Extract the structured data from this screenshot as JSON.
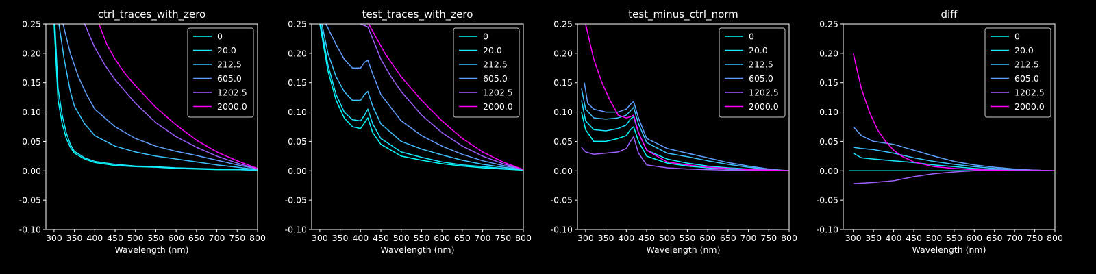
{
  "figure": {
    "background": "#000000",
    "foreground": "#ffffff"
  },
  "chart_data": [
    {
      "type": "line",
      "title": "ctrl_traces_with_zero",
      "xlabel": "Wavelength (nm)",
      "ylabel": "",
      "xlim": [
        280,
        800
      ],
      "ylim": [
        -0.1,
        0.25
      ],
      "xticks": [
        300,
        350,
        400,
        450,
        500,
        550,
        600,
        650,
        700,
        750,
        800
      ],
      "yticks": [
        -0.1,
        -0.05,
        0.0,
        0.05,
        0.1,
        0.15,
        0.2,
        0.25
      ],
      "legend": "top-right",
      "series": [
        {
          "name": "0",
          "color": "#00ffff",
          "x": [
            300,
            310,
            320,
            330,
            340,
            350,
            375,
            400,
            450,
            500,
            550,
            600,
            650,
            700,
            750,
            800
          ],
          "y": [
            0.25,
            0.12,
            0.08,
            0.055,
            0.04,
            0.03,
            0.02,
            0.014,
            0.009,
            0.007,
            0.006,
            0.004,
            0.003,
            0.002,
            0.002,
            0.001
          ]
        },
        {
          "name": "20.0",
          "color": "#19e6ff",
          "x": [
            302,
            310,
            320,
            330,
            340,
            350,
            375,
            400,
            450,
            500,
            550,
            600,
            650,
            700,
            750,
            800
          ],
          "y": [
            0.25,
            0.14,
            0.095,
            0.065,
            0.045,
            0.033,
            0.022,
            0.016,
            0.011,
            0.008,
            0.007,
            0.005,
            0.004,
            0.003,
            0.002,
            0.001
          ]
        },
        {
          "name": "212.5",
          "color": "#3cc3ff",
          "x": [
            312,
            325,
            340,
            350,
            375,
            400,
            450,
            500,
            550,
            600,
            650,
            700,
            750,
            800
          ],
          "y": [
            0.25,
            0.19,
            0.135,
            0.11,
            0.08,
            0.06,
            0.042,
            0.032,
            0.025,
            0.02,
            0.015,
            0.01,
            0.006,
            0.002
          ]
        },
        {
          "name": "605.0",
          "color": "#5fa0ff",
          "x": [
            322,
            340,
            360,
            380,
            400,
            450,
            500,
            550,
            600,
            650,
            700,
            750,
            800
          ],
          "y": [
            0.25,
            0.2,
            0.16,
            0.13,
            0.105,
            0.075,
            0.055,
            0.042,
            0.033,
            0.026,
            0.018,
            0.01,
            0.003
          ]
        },
        {
          "name": "1202.5",
          "color": "#a05fff",
          "x": [
            375,
            400,
            425,
            450,
            475,
            500,
            550,
            600,
            650,
            700,
            750,
            800
          ],
          "y": [
            0.25,
            0.21,
            0.18,
            0.155,
            0.135,
            0.115,
            0.082,
            0.058,
            0.04,
            0.025,
            0.013,
            0.003
          ]
        },
        {
          "name": "2000.0",
          "color": "#ff00ff",
          "x": [
            410,
            430,
            450,
            475,
            500,
            550,
            600,
            650,
            700,
            750,
            800
          ],
          "y": [
            0.25,
            0.215,
            0.19,
            0.165,
            0.145,
            0.108,
            0.078,
            0.052,
            0.032,
            0.017,
            0.004
          ]
        }
      ]
    },
    {
      "type": "line",
      "title": "test_traces_with_zero",
      "xlabel": "Wavelength (nm)",
      "ylabel": "",
      "xlim": [
        280,
        800
      ],
      "ylim": [
        -0.1,
        0.25
      ],
      "xticks": [
        300,
        350,
        400,
        450,
        500,
        550,
        600,
        650,
        700,
        750,
        800
      ],
      "yticks": [
        -0.1,
        -0.05,
        0.0,
        0.05,
        0.1,
        0.15,
        0.2,
        0.25
      ],
      "legend": "top-right",
      "series": [
        {
          "name": "0",
          "color": "#00ffff",
          "x": [
            300,
            320,
            340,
            360,
            380,
            400,
            410,
            418,
            430,
            450,
            500,
            550,
            600,
            650,
            700,
            750,
            800
          ],
          "y": [
            0.25,
            0.17,
            0.12,
            0.09,
            0.075,
            0.072,
            0.082,
            0.09,
            0.065,
            0.045,
            0.025,
            0.018,
            0.012,
            0.008,
            0.005,
            0.003,
            0.001
          ]
        },
        {
          "name": "20.0",
          "color": "#19e6ff",
          "x": [
            302,
            320,
            340,
            360,
            380,
            400,
            410,
            418,
            430,
            450,
            500,
            550,
            600,
            650,
            700,
            750,
            800
          ],
          "y": [
            0.25,
            0.18,
            0.13,
            0.1,
            0.087,
            0.085,
            0.095,
            0.105,
            0.08,
            0.055,
            0.032,
            0.023,
            0.015,
            0.01,
            0.007,
            0.004,
            0.002
          ]
        },
        {
          "name": "212.5",
          "color": "#3cc3ff",
          "x": [
            305,
            320,
            340,
            360,
            380,
            400,
            410,
            418,
            430,
            450,
            500,
            550,
            600,
            650,
            700,
            750,
            800
          ],
          "y": [
            0.25,
            0.2,
            0.16,
            0.135,
            0.12,
            0.12,
            0.13,
            0.135,
            0.11,
            0.08,
            0.05,
            0.037,
            0.027,
            0.018,
            0.011,
            0.006,
            0.002
          ]
        },
        {
          "name": "605.0",
          "color": "#5fa0ff",
          "x": [
            315,
            340,
            360,
            380,
            400,
            410,
            418,
            430,
            450,
            500,
            550,
            600,
            650,
            700,
            750,
            800
          ],
          "y": [
            0.25,
            0.215,
            0.19,
            0.175,
            0.175,
            0.185,
            0.188,
            0.165,
            0.13,
            0.085,
            0.06,
            0.042,
            0.028,
            0.017,
            0.009,
            0.002
          ]
        },
        {
          "name": "1202.5",
          "color": "#a05fff",
          "x": [
            400,
            418,
            430,
            450,
            475,
            500,
            550,
            600,
            650,
            700,
            750,
            800
          ],
          "y": [
            0.25,
            0.245,
            0.225,
            0.19,
            0.16,
            0.135,
            0.095,
            0.065,
            0.042,
            0.025,
            0.012,
            0.002
          ]
        },
        {
          "name": "2000.0",
          "color": "#ff00ff",
          "x": [
            420,
            440,
            460,
            480,
            500,
            550,
            600,
            650,
            700,
            750,
            800
          ],
          "y": [
            0.25,
            0.225,
            0.2,
            0.18,
            0.16,
            0.12,
            0.085,
            0.055,
            0.032,
            0.015,
            0.002
          ]
        }
      ]
    },
    {
      "type": "line",
      "title": "test_minus_ctrl_norm",
      "xlabel": "Wavelength (nm)",
      "ylabel": "",
      "xlim": [
        280,
        800
      ],
      "ylim": [
        -0.1,
        0.25
      ],
      "xticks": [
        300,
        350,
        400,
        450,
        500,
        550,
        600,
        650,
        700,
        750,
        800
      ],
      "yticks": [
        -0.1,
        -0.05,
        0.0,
        0.05,
        0.1,
        0.15,
        0.2,
        0.25
      ],
      "legend": "top-right",
      "series": [
        {
          "name": "0",
          "color": "#00ffff",
          "x": [
            290,
            300,
            320,
            350,
            380,
            400,
            410,
            418,
            430,
            450,
            500,
            550,
            600,
            650,
            700,
            750,
            800
          ],
          "y": [
            0.1,
            0.07,
            0.05,
            0.05,
            0.055,
            0.06,
            0.07,
            0.075,
            0.05,
            0.025,
            0.013,
            0.008,
            0.005,
            0.003,
            0.002,
            0.001,
            0.0
          ]
        },
        {
          "name": "20.0",
          "color": "#19e6ff",
          "x": [
            290,
            300,
            320,
            350,
            380,
            400,
            410,
            418,
            430,
            450,
            500,
            550,
            600,
            650,
            700,
            750,
            800
          ],
          "y": [
            0.12,
            0.085,
            0.07,
            0.068,
            0.072,
            0.078,
            0.088,
            0.092,
            0.065,
            0.035,
            0.02,
            0.013,
            0.008,
            0.005,
            0.003,
            0.001,
            0.0
          ]
        },
        {
          "name": "212.5",
          "color": "#3cc3ff",
          "x": [
            290,
            300,
            320,
            350,
            380,
            400,
            410,
            418,
            430,
            450,
            500,
            550,
            600,
            650,
            700,
            750,
            800
          ],
          "y": [
            0.14,
            0.105,
            0.09,
            0.088,
            0.09,
            0.095,
            0.102,
            0.108,
            0.08,
            0.048,
            0.03,
            0.024,
            0.017,
            0.011,
            0.006,
            0.002,
            0.0
          ]
        },
        {
          "name": "605.0",
          "color": "#5fa0ff",
          "x": [
            297,
            305,
            320,
            350,
            380,
            400,
            410,
            418,
            430,
            450,
            500,
            550,
            600,
            650,
            700,
            750,
            800
          ],
          "y": [
            0.15,
            0.115,
            0.105,
            0.1,
            0.1,
            0.105,
            0.113,
            0.118,
            0.09,
            0.055,
            0.038,
            0.03,
            0.022,
            0.014,
            0.008,
            0.003,
            0.0
          ]
        },
        {
          "name": "1202.5",
          "color": "#a05fff",
          "x": [
            290,
            300,
            320,
            350,
            380,
            400,
            410,
            418,
            430,
            450,
            500,
            550,
            600,
            650,
            700,
            750,
            800
          ],
          "y": [
            0.04,
            0.032,
            0.028,
            0.03,
            0.032,
            0.038,
            0.05,
            0.058,
            0.03,
            0.01,
            0.005,
            0.003,
            0.002,
            0.001,
            0.001,
            0.0,
            0.0
          ]
        },
        {
          "name": "2000.0",
          "color": "#ff00ff",
          "x": [
            300,
            320,
            340,
            360,
            380,
            400,
            410,
            418,
            430,
            450,
            500,
            550,
            600,
            650,
            700,
            750,
            800
          ],
          "y": [
            0.25,
            0.19,
            0.15,
            0.12,
            0.095,
            0.09,
            0.092,
            0.095,
            0.065,
            0.035,
            0.015,
            0.01,
            0.006,
            0.004,
            0.002,
            0.001,
            0.0
          ]
        }
      ]
    },
    {
      "type": "line",
      "title": "diff",
      "xlabel": "Wavelength (nm)",
      "ylabel": "",
      "xlim": [
        275,
        800
      ],
      "ylim": [
        -0.1,
        0.25
      ],
      "xticks": [
        300,
        350,
        400,
        450,
        500,
        550,
        600,
        650,
        700,
        750,
        800
      ],
      "yticks": [
        -0.1,
        -0.05,
        0.0,
        0.05,
        0.1,
        0.15,
        0.2,
        0.25
      ],
      "legend": "top-right",
      "series": [
        {
          "name": "0",
          "color": "#00ffff",
          "x": [
            290,
            800
          ],
          "y": [
            0.0,
            0.0
          ]
        },
        {
          "name": "20.0",
          "color": "#19e6ff",
          "x": [
            300,
            320,
            350,
            400,
            450,
            500,
            550,
            600,
            650,
            700,
            750,
            800
          ],
          "y": [
            0.03,
            0.022,
            0.02,
            0.017,
            0.014,
            0.01,
            0.007,
            0.004,
            0.002,
            0.001,
            0.0,
            0.0
          ]
        },
        {
          "name": "212.5",
          "color": "#3cc3ff",
          "x": [
            300,
            320,
            350,
            400,
            450,
            500,
            550,
            600,
            650,
            700,
            750,
            800
          ],
          "y": [
            0.04,
            0.038,
            0.036,
            0.03,
            0.022,
            0.016,
            0.011,
            0.007,
            0.004,
            0.002,
            0.001,
            0.0
          ]
        },
        {
          "name": "605.0",
          "color": "#5fa0ff",
          "x": [
            300,
            320,
            350,
            400,
            450,
            500,
            550,
            600,
            650,
            700,
            750,
            800
          ],
          "y": [
            0.075,
            0.06,
            0.05,
            0.045,
            0.035,
            0.025,
            0.016,
            0.01,
            0.006,
            0.003,
            0.001,
            0.0
          ]
        },
        {
          "name": "1202.5",
          "color": "#a05fff",
          "x": [
            300,
            350,
            400,
            450,
            500,
            550,
            600,
            650,
            700,
            750,
            800
          ],
          "y": [
            -0.022,
            -0.02,
            -0.017,
            -0.01,
            -0.005,
            -0.002,
            0.0,
            0.001,
            0.001,
            0.001,
            0.0
          ]
        },
        {
          "name": "2000.0",
          "color": "#ff00ff",
          "x": [
            300,
            320,
            340,
            360,
            380,
            400,
            420,
            450,
            500,
            550,
            600,
            650,
            700,
            750,
            800
          ],
          "y": [
            0.2,
            0.14,
            0.1,
            0.07,
            0.05,
            0.035,
            0.025,
            0.015,
            0.007,
            0.004,
            0.002,
            0.001,
            0.0,
            0.0,
            0.0
          ]
        }
      ]
    }
  ]
}
